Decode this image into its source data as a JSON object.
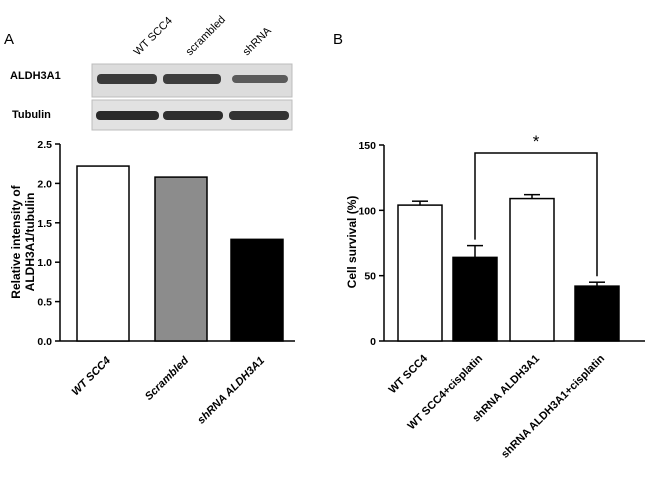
{
  "panel_labels": {
    "a": "A",
    "b": "B"
  },
  "blot": {
    "lanes": [
      "WT SCC4",
      "scrambled",
      "shRNA"
    ],
    "rows": [
      "ALDH3A1",
      "Tubulin"
    ]
  },
  "colors": {
    "white": "#ffffff",
    "gray": "#8c8c8c",
    "black": "#000000"
  },
  "chart_data": [
    {
      "type": "bar",
      "title": "",
      "xlabel": "",
      "ylabel": "Relative intensity of ALDH3A1/tubulin",
      "ylabel_lines": [
        "Relative intensity of",
        "ALDH3A1/tubulin"
      ],
      "categories": [
        "WT SCC4",
        "Scrambled",
        "shRNA ALDH3A1"
      ],
      "values": [
        2.22,
        2.08,
        1.29
      ],
      "bar_colors": [
        "#ffffff",
        "#8c8c8c",
        "#000000"
      ],
      "ylim": [
        0,
        2.5
      ],
      "yticks": [
        "0.0",
        "0.5",
        "1.0",
        "1.5",
        "2.0",
        "2.5"
      ],
      "grid": false,
      "italic_categories": [
        true,
        true,
        true
      ]
    },
    {
      "type": "bar",
      "title": "",
      "xlabel": "",
      "ylabel": "Cell survival (%)",
      "categories": [
        "WT SCC4",
        "WT SCC4+cisplatin",
        "shRNA ALDH3A1",
        "shRNA ALDH3A1+cisplatin"
      ],
      "values": [
        104,
        64,
        109,
        42
      ],
      "errors": [
        3,
        9,
        3,
        3
      ],
      "bar_colors": [
        "#ffffff",
        "#000000",
        "#ffffff",
        "#000000"
      ],
      "ylim": [
        0,
        150
      ],
      "yticks": [
        "0",
        "50",
        "100",
        "150"
      ],
      "grid": false,
      "italic_categories": [
        false,
        false,
        false,
        false
      ],
      "significance": {
        "from": 1,
        "to": 3,
        "label": "*"
      }
    }
  ]
}
